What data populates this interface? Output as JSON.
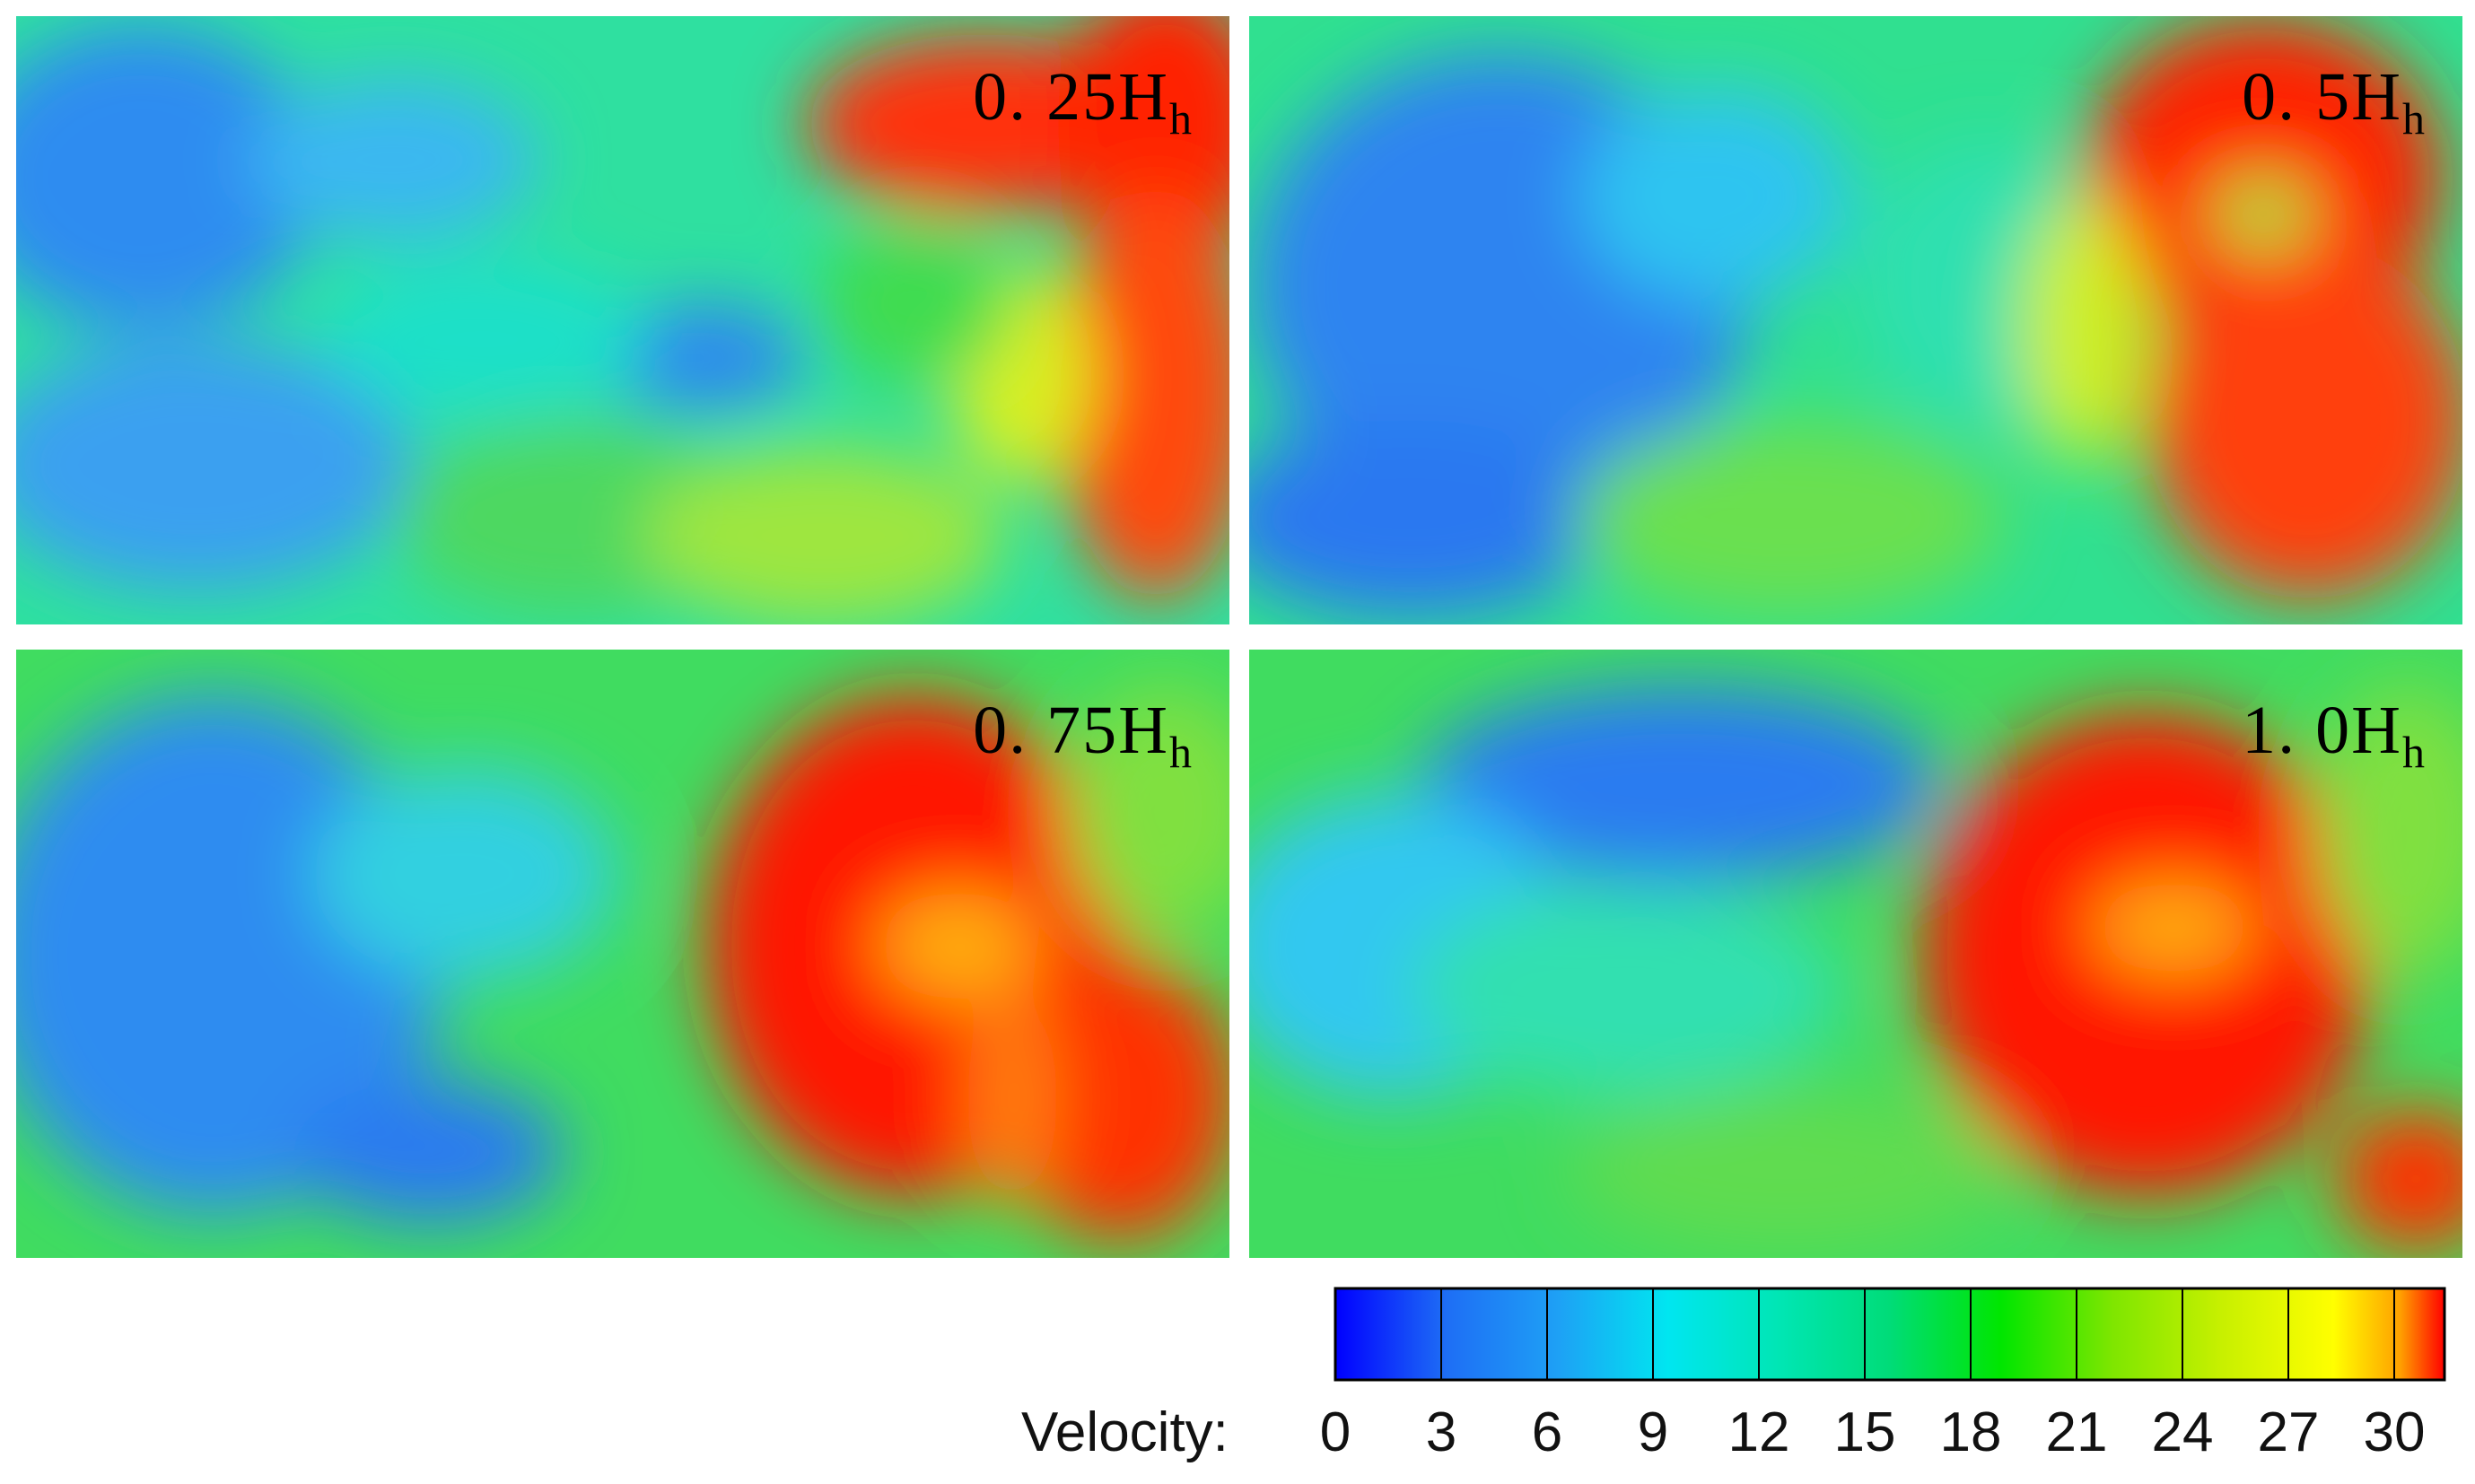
{
  "panels": [
    {
      "label": "0. 25H",
      "sub": "h"
    },
    {
      "label": "0. 5H",
      "sub": "h"
    },
    {
      "label": "0. 75H",
      "sub": "h"
    },
    {
      "label": "1. 0H",
      "sub": "h"
    }
  ],
  "colorbar": {
    "title": "Velocity:",
    "ticks": [
      "0",
      "3",
      "6",
      "9",
      "12",
      "15",
      "18",
      "21",
      "24",
      "27",
      "30"
    ],
    "colors": [
      "#0000ff",
      "#1e6ef5",
      "#1ea0f5",
      "#00e6f0",
      "#00e6b4",
      "#00dc78",
      "#00e600",
      "#7ee600",
      "#c8f000",
      "#ffff00",
      "#ffa000",
      "#ff0000"
    ]
  }
}
